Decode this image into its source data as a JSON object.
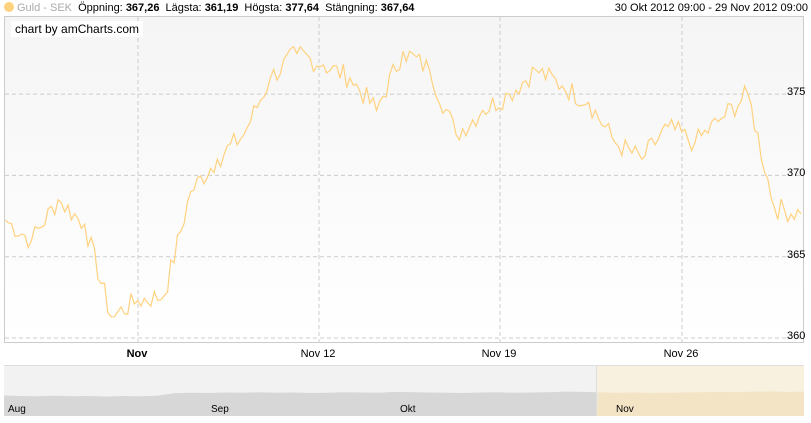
{
  "header": {
    "series_name": "Guld - SEK",
    "open_label": "Öppning:",
    "open_value": "367,26",
    "low_label": "Lägsta:",
    "low_value": "361,19",
    "high_label": "Högsta:",
    "high_value": "377,64",
    "close_label": "Stängning:",
    "close_value": "367,64",
    "period": "30 Okt 2012 09:00 - 29 Nov 2012 09:00"
  },
  "credit": "chart by amCharts.com",
  "colors": {
    "series": "#FFD27F",
    "scroller_fill": "#cccccc",
    "grid": "#cccccc"
  },
  "chart_data": {
    "type": "line",
    "title": "",
    "xlabel": "",
    "ylabel": "",
    "x_ticks": [
      "Nov",
      "Nov 12",
      "Nov 19",
      "Nov 26"
    ],
    "y_ticks": [
      "360",
      "365",
      "370",
      "375"
    ],
    "ylim": [
      360,
      379.5
    ],
    "series": [
      {
        "name": "Guld - SEK",
        "x": [
          "Okt 30",
          "Okt 31",
          "Nov 1",
          "Nov 2",
          "Nov 3",
          "Nov 4",
          "Nov 5",
          "Nov 6",
          "Nov 7",
          "Nov 8",
          "Nov 9",
          "Nov 10",
          "Nov 11",
          "Nov 12",
          "Nov 13",
          "Nov 14",
          "Nov 15",
          "Nov 16",
          "Nov 17",
          "Nov 18",
          "Nov 19",
          "Nov 20",
          "Nov 21",
          "Nov 22",
          "Nov 23",
          "Nov 24",
          "Nov 25",
          "Nov 26",
          "Nov 27",
          "Nov 28",
          "Nov 29"
        ],
        "y": [
          367.26,
          366.0,
          368.5,
          367.0,
          361.3,
          362.3,
          362.6,
          369.0,
          371.0,
          372.5,
          376.0,
          377.5,
          376.8,
          376.0,
          374.0,
          377.64,
          376.5,
          372.5,
          374.0,
          375.0,
          376.5,
          375.5,
          374.5,
          372.0,
          371.0,
          373.0,
          372.0,
          373.5,
          375.0,
          368.0,
          367.64
        ]
      }
    ],
    "scroller_labels": [
      "Aug",
      "Sep",
      "Okt",
      "Nov"
    ],
    "scroller_series": [
      60,
      58,
      57,
      59,
      57,
      58,
      56,
      58,
      57,
      59,
      68,
      70,
      69,
      71,
      70,
      72,
      70,
      71,
      69,
      70,
      72,
      71,
      70,
      73,
      72,
      71,
      70,
      69,
      71,
      72,
      70,
      71,
      72,
      74,
      73,
      72,
      70,
      71,
      69,
      70,
      71,
      72,
      73,
      72,
      74,
      75,
      73,
      74
    ]
  }
}
